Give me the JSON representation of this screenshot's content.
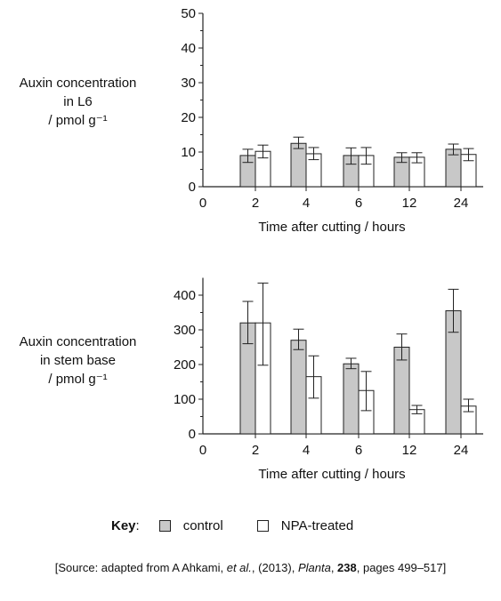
{
  "chart_data": [
    {
      "type": "bar",
      "ylabel_lines": [
        "Auxin concentration",
        "in L6",
        "/ pmol g⁻¹"
      ],
      "xlabel": "Time after cutting / hours",
      "x_ticks": [
        "0",
        "2",
        "4",
        "6",
        "12",
        "24"
      ],
      "categories": [
        "2",
        "4",
        "6",
        "12",
        "24"
      ],
      "ylim": [
        0,
        50
      ],
      "y_ticks": [
        0,
        10,
        20,
        30,
        40,
        50
      ],
      "series": [
        {
          "name": "control",
          "values": [
            9,
            12.5,
            9,
            8.5,
            10.8
          ],
          "err_low": [
            7,
            11,
            6.5,
            7,
            9.2
          ],
          "err_high": [
            10.8,
            14.3,
            11.2,
            9.8,
            12.3
          ]
        },
        {
          "name": "NPA-treated",
          "values": [
            10.2,
            9.5,
            9,
            8.5,
            9.3
          ],
          "err_low": [
            8.3,
            7.8,
            6.5,
            6.9,
            7.5
          ],
          "err_high": [
            12,
            11.3,
            11.3,
            9.8,
            11
          ]
        }
      ]
    },
    {
      "type": "bar",
      "ylabel_lines": [
        "Auxin concentration",
        "in stem base",
        "/ pmol g⁻¹"
      ],
      "xlabel": "Time after cutting / hours",
      "x_ticks": [
        "0",
        "2",
        "4",
        "6",
        "12",
        "24"
      ],
      "categories": [
        "2",
        "4",
        "6",
        "12",
        "24"
      ],
      "ylim": [
        0,
        450
      ],
      "y_ticks": [
        0,
        100,
        200,
        300,
        400
      ],
      "series": [
        {
          "name": "control",
          "values": [
            320,
            270,
            202,
            250,
            355
          ],
          "err_low": [
            260,
            243,
            188,
            213,
            293
          ],
          "err_high": [
            382,
            302,
            218,
            288,
            417
          ]
        },
        {
          "name": "NPA-treated",
          "values": [
            320,
            165,
            125,
            70,
            80
          ],
          "err_low": [
            198,
            103,
            67,
            58,
            64
          ],
          "err_high": [
            435,
            225,
            180,
            82,
            100
          ]
        }
      ]
    }
  ],
  "key": {
    "title": "Key",
    "items": [
      {
        "label": "control",
        "color": "#c8c8c8"
      },
      {
        "label": "NPA-treated",
        "color": "#ffffff"
      }
    ]
  },
  "source": {
    "prefix": "[Source: adapted from A Ahkami, ",
    "etal": "et al.",
    "mid": ", (2013), ",
    "journal": "Planta",
    "sep": ", ",
    "volume": "238",
    "suffix": ", pages 499–517]"
  }
}
